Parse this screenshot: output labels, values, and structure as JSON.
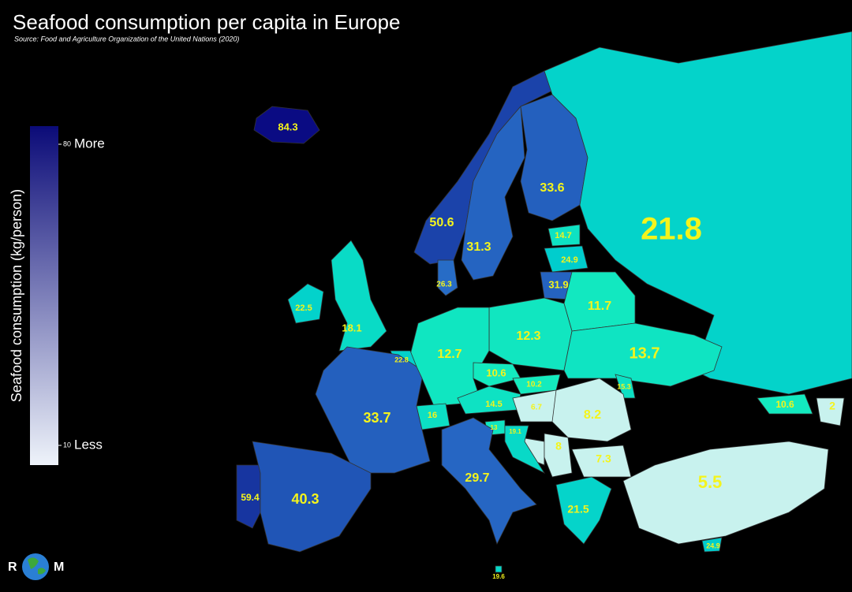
{
  "title": "Seafood consumption per capita in Europe",
  "source": "Source: Food and Agriculture Organization of the United Nations (2020)",
  "legend": {
    "title": "Seafood consumption (kg/person)",
    "ticks": [
      80,
      10
    ],
    "tick_labels": [
      "More",
      "Less"
    ]
  },
  "values": [
    84.3,
    50.6,
    31.3,
    33.6,
    21.8,
    14.7,
    24.9,
    31.9,
    26.3,
    22.5,
    18.1,
    11.7,
    12.3,
    13.7,
    12.7,
    22.8,
    10.6,
    10.2,
    15.3,
    33.7,
    16,
    14.5,
    6.7,
    8.2,
    13,
    19.1,
    8,
    7.3,
    29.7,
    59.4,
    40.3,
    21.5,
    5.5,
    10.6,
    2,
    24.9,
    19.6
  ],
  "logo": [
    "R",
    "M"
  ]
}
